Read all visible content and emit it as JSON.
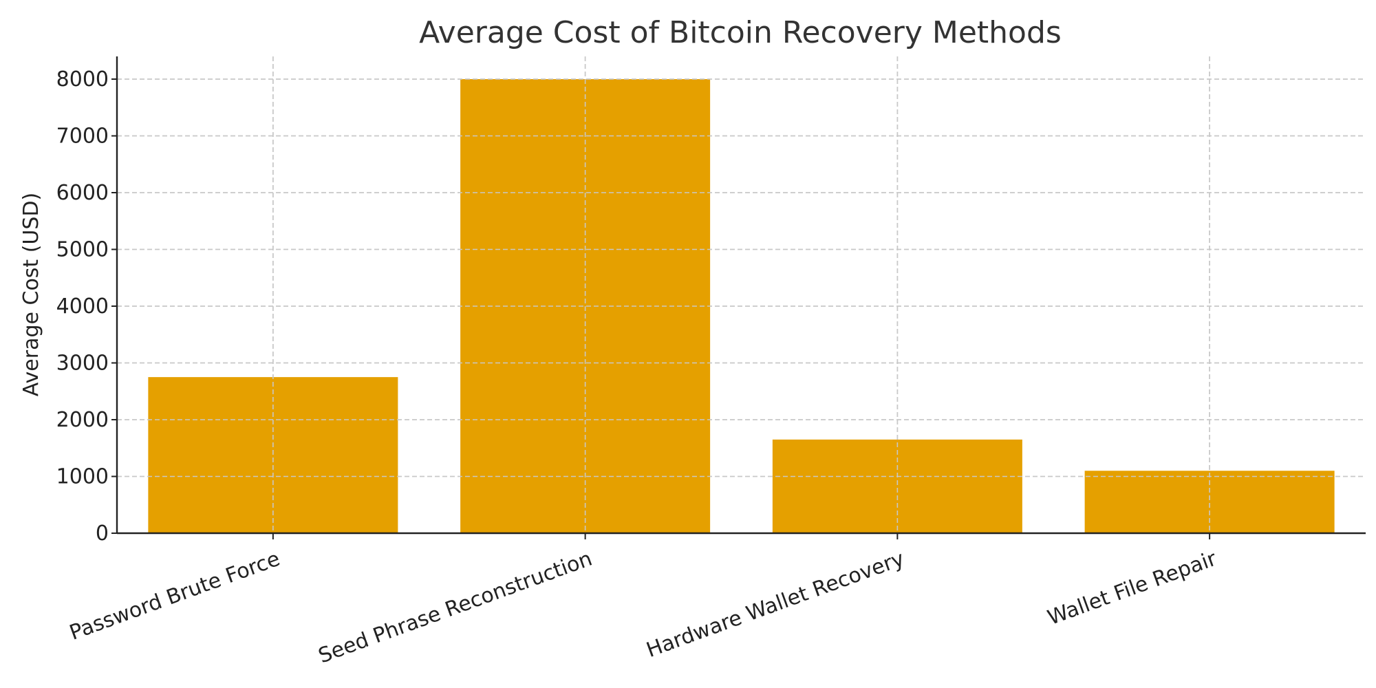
{
  "chart_data": {
    "type": "bar",
    "title": "Average Cost of Bitcoin Recovery Methods",
    "xlabel": "",
    "ylabel": "Average Cost (USD)",
    "categories": [
      "Password Brute Force",
      "Seed Phrase Reconstruction",
      "Hardware Wallet Recovery",
      "Wallet File Repair"
    ],
    "values": [
      2750,
      8000,
      1650,
      1100
    ],
    "ylim": [
      0,
      8400
    ],
    "yticks": [
      0,
      1000,
      2000,
      3000,
      4000,
      5000,
      6000,
      7000,
      8000
    ],
    "bar_color": "#e5a000",
    "grid": true,
    "xtick_rotation": 20
  }
}
